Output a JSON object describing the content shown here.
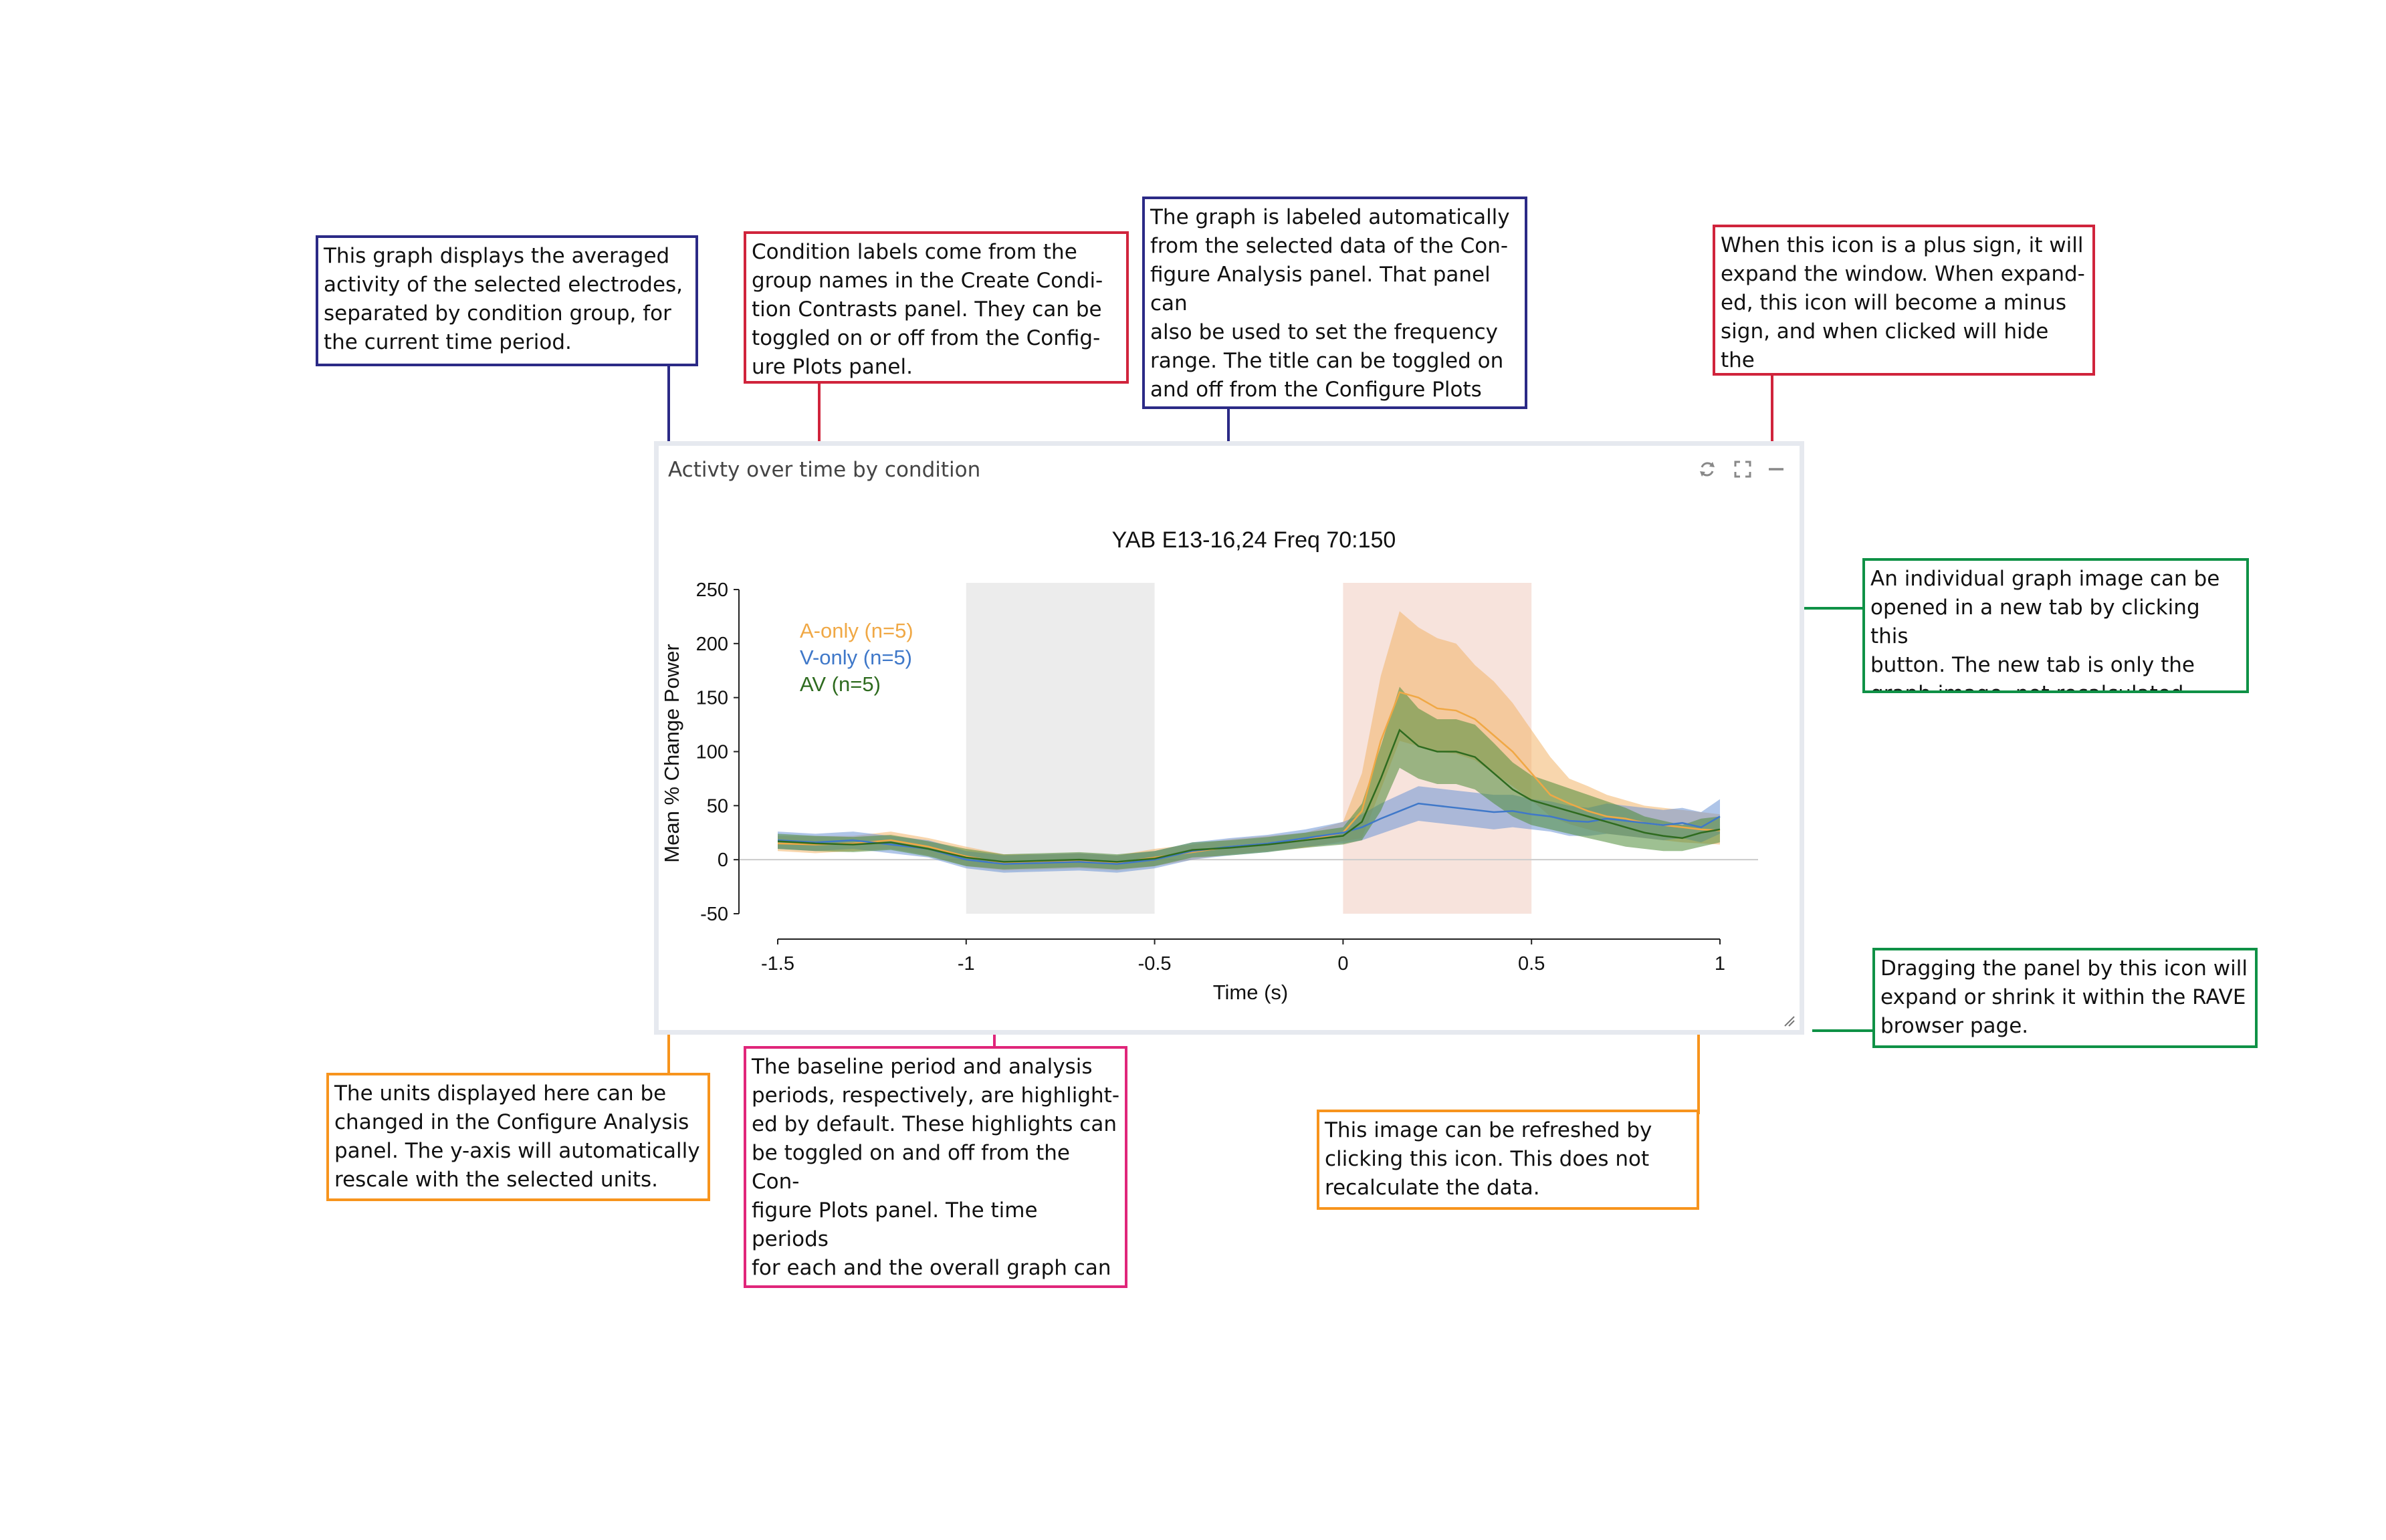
{
  "panel": {
    "header_title": "Activty over time by condition",
    "icons": [
      "refresh-icon",
      "expand-icon",
      "minimize-icon"
    ]
  },
  "chart_data": {
    "type": "line",
    "title": "YAB E13-16,24 Freq 70:150",
    "xlabel": "Time (s)",
    "ylabel": "Mean % Change Power",
    "xlim": [
      -1.5,
      1.0
    ],
    "ylim": [
      -50,
      250
    ],
    "xticks": [
      "-1.5",
      "-1",
      "-0.5",
      "0",
      "0.5",
      "1"
    ],
    "yticks": [
      "250",
      "200",
      "150",
      "100",
      "50",
      "0",
      "-50"
    ],
    "highlights": [
      {
        "name": "baseline",
        "x": [
          -1.0,
          -0.5
        ],
        "color": "#ececec"
      },
      {
        "name": "analysis",
        "x": [
          0.0,
          0.5
        ],
        "color": "#f7e3dc"
      }
    ],
    "legend": [
      {
        "label": "A-only (n=5)",
        "color": "#f0a845"
      },
      {
        "label": "V-only (n=5)",
        "color": "#3f78c9"
      },
      {
        "label": "AV (n=5)",
        "color": "#2e6b1f"
      }
    ],
    "series": [
      {
        "name": "A-only (n=5)",
        "color": "#f0a845",
        "band_color": "#f3b56a",
        "x": [
          -1.5,
          -1.4,
          -1.3,
          -1.2,
          -1.1,
          -1.0,
          -0.9,
          -0.8,
          -0.7,
          -0.6,
          -0.5,
          -0.4,
          -0.3,
          -0.2,
          -0.1,
          0.0,
          0.05,
          0.1,
          0.15,
          0.2,
          0.25,
          0.3,
          0.35,
          0.4,
          0.45,
          0.5,
          0.55,
          0.6,
          0.65,
          0.7,
          0.75,
          0.8,
          0.85,
          0.9,
          0.95,
          1.0
        ],
        "values": [
          15,
          14,
          15,
          18,
          12,
          3,
          -3,
          -2,
          -1,
          -3,
          2,
          7,
          12,
          15,
          18,
          25,
          45,
          110,
          155,
          150,
          140,
          138,
          130,
          115,
          100,
          80,
          60,
          52,
          45,
          40,
          38,
          34,
          32,
          30,
          28,
          27
        ],
        "lower": [
          8,
          6,
          8,
          10,
          4,
          -6,
          -10,
          -9,
          -8,
          -10,
          -6,
          0,
          5,
          8,
          11,
          17,
          20,
          65,
          110,
          105,
          100,
          98,
          92,
          80,
          68,
          55,
          40,
          33,
          28,
          24,
          22,
          20,
          18,
          16,
          15,
          14
        ],
        "upper": [
          22,
          22,
          22,
          26,
          20,
          12,
          5,
          5,
          6,
          4,
          10,
          14,
          19,
          22,
          25,
          35,
          80,
          170,
          230,
          215,
          205,
          200,
          180,
          165,
          145,
          120,
          95,
          75,
          68,
          60,
          55,
          50,
          48,
          46,
          44,
          42
        ]
      },
      {
        "name": "V-only (n=5)",
        "color": "#3f78c9",
        "band_color": "#6e95d6",
        "x": [
          -1.5,
          -1.4,
          -1.3,
          -1.2,
          -1.1,
          -1.0,
          -0.9,
          -0.8,
          -0.7,
          -0.6,
          -0.5,
          -0.4,
          -0.3,
          -0.2,
          -0.1,
          0.0,
          0.05,
          0.1,
          0.15,
          0.2,
          0.25,
          0.3,
          0.35,
          0.4,
          0.45,
          0.5,
          0.55,
          0.6,
          0.65,
          0.7,
          0.75,
          0.8,
          0.85,
          0.9,
          0.95,
          1.0
        ],
        "values": [
          18,
          16,
          18,
          14,
          10,
          0,
          -4,
          -3,
          -2,
          -4,
          0,
          8,
          12,
          15,
          20,
          25,
          30,
          38,
          45,
          52,
          50,
          48,
          46,
          44,
          45,
          42,
          40,
          36,
          35,
          38,
          36,
          34,
          32,
          34,
          30,
          40
        ],
        "lower": [
          10,
          8,
          10,
          6,
          2,
          -8,
          -12,
          -11,
          -10,
          -12,
          -8,
          0,
          4,
          7,
          12,
          15,
          18,
          24,
          30,
          36,
          34,
          32,
          30,
          28,
          30,
          28,
          26,
          22,
          22,
          24,
          22,
          20,
          18,
          20,
          16,
          24
        ],
        "upper": [
          26,
          24,
          26,
          22,
          18,
          8,
          4,
          5,
          6,
          4,
          8,
          16,
          20,
          23,
          28,
          35,
          42,
          52,
          60,
          68,
          66,
          64,
          62,
          60,
          60,
          56,
          54,
          50,
          48,
          52,
          50,
          48,
          46,
          48,
          44,
          56
        ]
      },
      {
        "name": "AV (n=5)",
        "color": "#2e6b1f",
        "band_color": "#4e8c38",
        "x": [
          -1.5,
          -1.4,
          -1.3,
          -1.2,
          -1.1,
          -1.0,
          -0.9,
          -0.8,
          -0.7,
          -0.6,
          -0.5,
          -0.4,
          -0.3,
          -0.2,
          -0.1,
          0.0,
          0.05,
          0.1,
          0.15,
          0.2,
          0.25,
          0.3,
          0.35,
          0.4,
          0.45,
          0.5,
          0.55,
          0.6,
          0.65,
          0.7,
          0.75,
          0.8,
          0.85,
          0.9,
          0.95,
          1.0
        ],
        "values": [
          17,
          15,
          14,
          16,
          10,
          2,
          -2,
          -1,
          0,
          -2,
          1,
          9,
          11,
          14,
          18,
          22,
          35,
          75,
          120,
          105,
          100,
          100,
          95,
          80,
          65,
          55,
          50,
          45,
          40,
          35,
          30,
          25,
          22,
          20,
          25,
          28
        ],
        "lower": [
          10,
          8,
          7,
          9,
          3,
          -6,
          -9,
          -8,
          -7,
          -9,
          -6,
          2,
          4,
          7,
          11,
          14,
          18,
          45,
          85,
          75,
          70,
          70,
          65,
          52,
          40,
          32,
          28,
          24,
          20,
          16,
          12,
          10,
          8,
          8,
          12,
          16
        ],
        "upper": [
          24,
          22,
          21,
          23,
          17,
          10,
          5,
          6,
          7,
          5,
          8,
          16,
          18,
          21,
          25,
          30,
          52,
          105,
          160,
          140,
          130,
          130,
          125,
          108,
          90,
          78,
          72,
          66,
          60,
          54,
          48,
          40,
          36,
          32,
          38,
          40
        ]
      }
    ]
  },
  "callouts": {
    "graph_description": "This graph displays the averaged\nactivity of the selected electrodes,\nseparated by condition group, for\nthe current time period.",
    "condition_labels": "Condition labels come from the\ngroup names in the Create Condi-\ntion Contrasts panel. They can be\ntoggled on or off from the Config-\nure Plots panel.",
    "graph_label": "The graph is labeled automatically\nfrom the selected data of the Con-\nfigure Analysis panel. That panel can\nalso be used to set the frequency\nrange. The title can be toggled on\nand off from the Configure Plots\npanel.",
    "minus_icon": "When this icon is a plus sign, it will\nexpand the window. When expand-\ned, this icon will become a minus\nsign, and when clicked will hide the\nwindow.",
    "new_tab": "An individual graph image can be\nopened in a new tab by clicking this\nbutton. The new tab is only the\ngraph image, not recalculated data.",
    "drag_panel": "Dragging the panel by this icon will\nexpand or shrink it within the RAVE\nbrowser page.",
    "units": "The units displayed here can be\nchanged in the Configure Analysis\npanel. The y-axis will automatically\nrescale with the selected units.",
    "baseline": "The baseline period and analysis\nperiods, respectively, are highlight-\ned by default. These highlights can\nbe toggled on and off from the Con-\nfigure Plots panel. The time periods\nfor each and the overall graph can\nbe changed in the Configure Analy-\nsis panel.",
    "refresh": "This image can be refreshed by\nclicking this icon.  This does not\nrecalculate the data."
  }
}
